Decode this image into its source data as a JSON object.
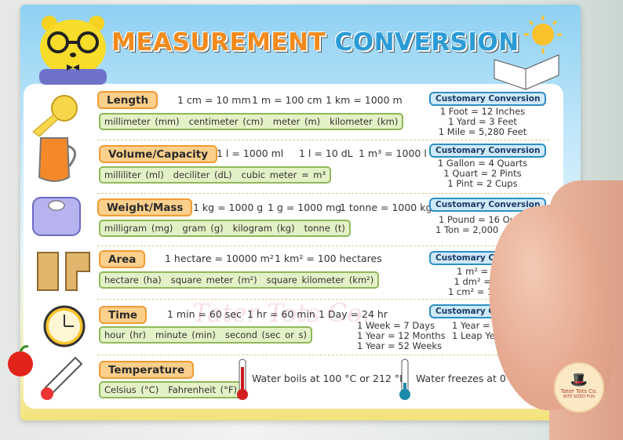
{
  "title": {
    "part1": "MEASUREMENT",
    "part2": "CONVERSION"
  },
  "watermark": "Tater Tots Co.",
  "logo": {
    "name": "Tater Tots Co.",
    "tagline": "BITE SIZED FUN"
  },
  "sections": [
    {
      "category": "Length",
      "equations": [
        "1 cm = 10 mm",
        "1 m = 100 cm",
        "1 km = 1000 m"
      ],
      "units": [
        "millimeter (mm)",
        "centimeter (cm)",
        "meter (m)",
        "kilometer (km)"
      ],
      "customary_label": "Customary Conversion",
      "customary": [
        "1 Foot = 12 Inches",
        "1 Yard = 3 Feet",
        "1 Mile = 5,280 Feet"
      ],
      "icon": "tape-measure-icon"
    },
    {
      "category": "Volume/Capacity",
      "equations": [
        "1 l = 1000 ml",
        "1 l = 10 dL",
        "1 m³ = 1000 l"
      ],
      "units": [
        "milliliter (ml)",
        "deciliter (dL)",
        "cubic meter = m³"
      ],
      "customary_label": "Customary Conversion",
      "customary": [
        "1 Gallon = 4 Quarts",
        "1 Quart = 2 Pints",
        "1 Pint = 2 Cups"
      ],
      "icon": "juice-jug-icon"
    },
    {
      "category": "Weight/Mass",
      "equations": [
        "1 kg = 1000 g",
        "1 g = 1000 mg",
        "1 tonne = 1000 kg"
      ],
      "units": [
        "milligram (mg)",
        "gram (g)",
        "kilogram (kg)",
        "tonne (t)"
      ],
      "customary_label": "Customary Conversion",
      "customary": [
        "1 Pound = 16 Ou",
        "1 Ton = 2,000"
      ],
      "icon": "scale-icon"
    },
    {
      "category": "Area",
      "equations": [
        "1 hectare = 10000 m²",
        "1 km² = 100 hectares"
      ],
      "units": [
        "hectare (ha)",
        "square meter (m²)",
        "square kilometer (km²)"
      ],
      "customary_label": "Customary Co",
      "customary": [
        "1 m² = 100 c",
        "1 dm² = 100 c",
        "1 cm² = 100 mm"
      ],
      "icon": "land-area-icon"
    },
    {
      "category": "Time",
      "equations": [
        "1 min = 60 sec",
        "1 hr = 60 min",
        "1 Day = 24 hr"
      ],
      "units": [
        "hour (hr)",
        "minute (min)",
        "second (sec or s)"
      ],
      "customary_label": "Customary Conversion",
      "customary_left": [
        "1 Week = 7 Days",
        "1 Year = 12 Months",
        "1 Year = 52 Weeks"
      ],
      "customary": [
        "1 Year = 365 Days",
        "1 Leap Year = 366 Days"
      ],
      "icon": "clock-icon"
    },
    {
      "category": "Temperature",
      "units": [
        "Celsius (°C)",
        "Fahrenheit (°F)"
      ],
      "facts": [
        "Water boils at 100 °C or 212 °F",
        "Water freezes at 0°C or 32 °F"
      ],
      "icon": "thermometer-icon"
    }
  ],
  "colors": {
    "category_fill": "#fbcf8c",
    "category_border": "#f29b33",
    "units_fill": "#e3f1c6",
    "units_border": "#8fb85a",
    "customary_fill": "#cfe9f8",
    "customary_border": "#2c8fc6",
    "title_orange": "#f28a1b",
    "title_blue": "#2b9bd6"
  }
}
